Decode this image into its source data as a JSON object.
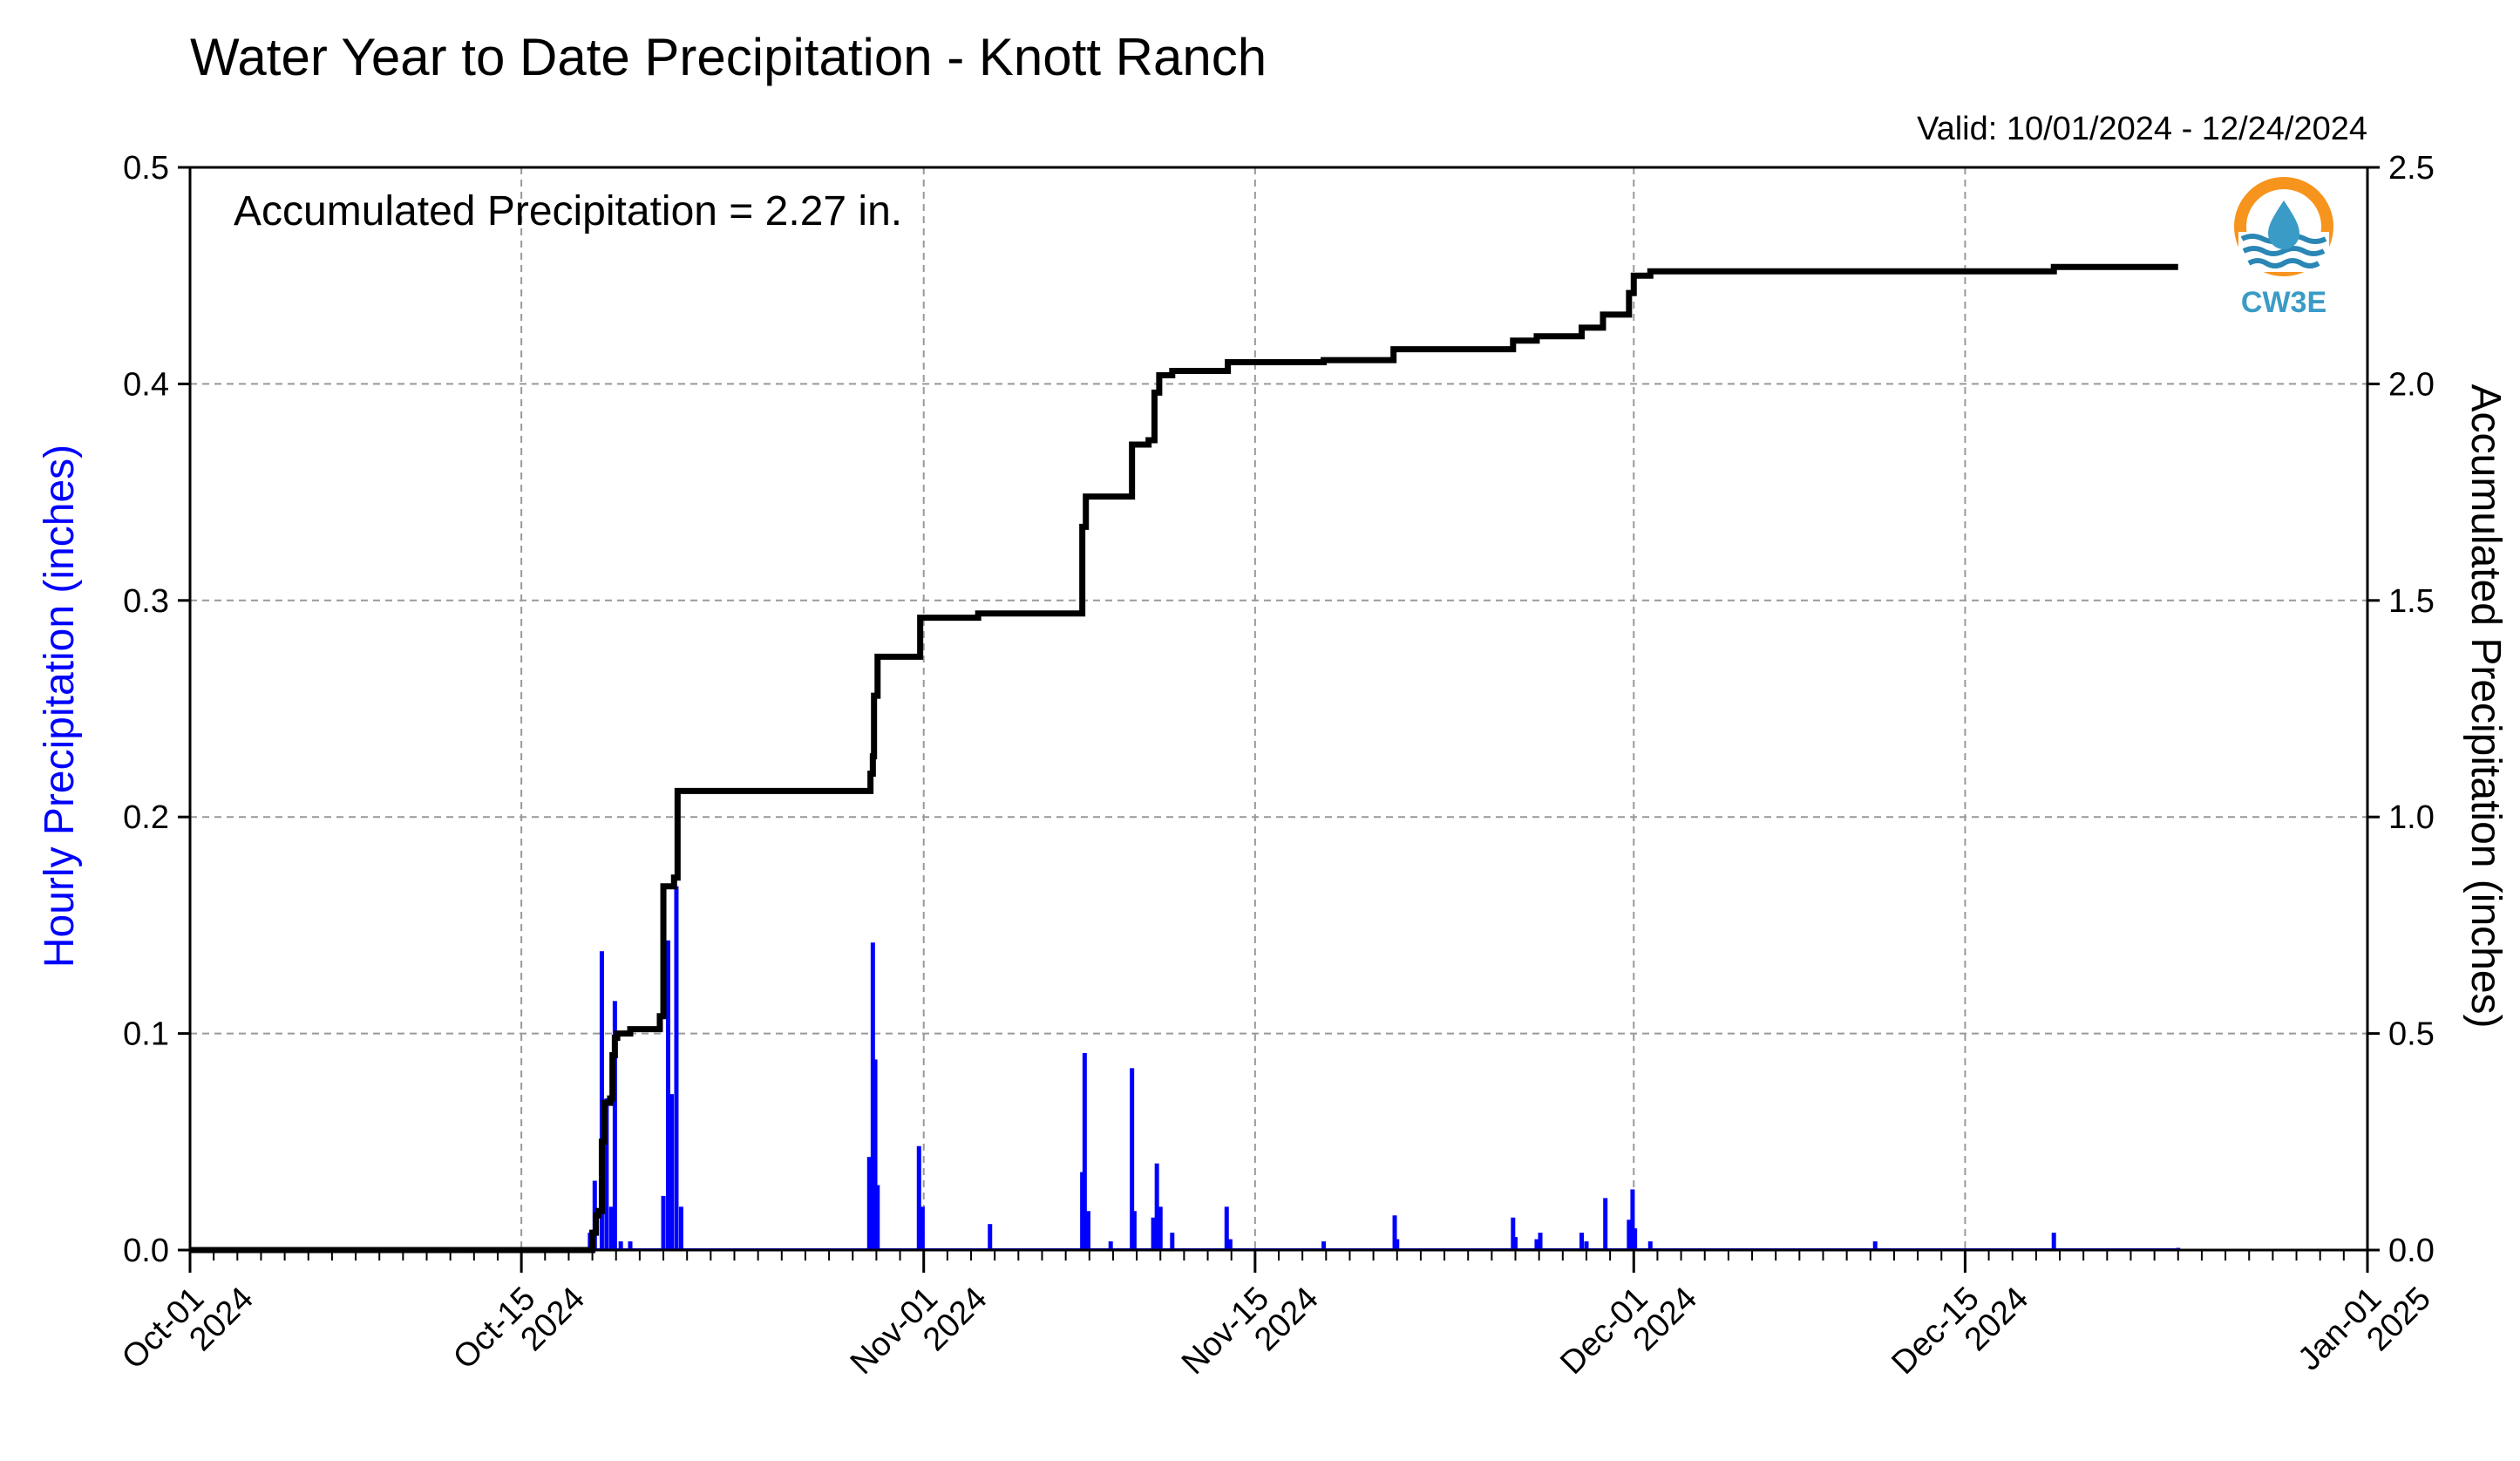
{
  "chart_data": {
    "type": "bar+line",
    "title": "Water Year to Date Precipitation - Knott Ranch",
    "valid_label": "Valid: 10/01/2024 - 12/24/2024",
    "annotation": "Accumulated Precipitation = 2.27 in.",
    "left_ylabel": "Hourly Precipitation (inches)",
    "right_ylabel": "Accumulated Precipitation (inches)",
    "left_ylim": [
      0,
      0.5
    ],
    "right_ylim": [
      0,
      2.5
    ],
    "left_ticks": [
      "0.0",
      "0.1",
      "0.2",
      "0.3",
      "0.4",
      "0.5"
    ],
    "right_ticks": [
      "0.0",
      "0.5",
      "1.0",
      "1.5",
      "2.0",
      "2.5"
    ],
    "xlim_days": [
      0,
      92
    ],
    "x_ticks": [
      {
        "day": 0,
        "line1": "Oct-01",
        "line2": "2024"
      },
      {
        "day": 14,
        "line1": "Oct-15",
        "line2": "2024"
      },
      {
        "day": 31,
        "line1": "Nov-01",
        "line2": "2024"
      },
      {
        "day": 45,
        "line1": "Nov-15",
        "line2": "2024"
      },
      {
        "day": 61,
        "line1": "Dec-01",
        "line2": "2024"
      },
      {
        "day": 75,
        "line1": "Dec-15",
        "line2": "2024"
      },
      {
        "day": 92,
        "line1": "Jan-01",
        "line2": "2025"
      }
    ],
    "grid": true,
    "bar_color": "#0000ff",
    "line_color": "#000000",
    "left_label_color": "#0000ff",
    "series": [
      {
        "kind": "bar",
        "axis": "left",
        "points": [
          [
            16.9,
            0.008
          ],
          [
            17.1,
            0.032
          ],
          [
            17.4,
            0.138
          ],
          [
            17.6,
            0.07
          ],
          [
            17.8,
            0.02
          ],
          [
            17.95,
            0.115
          ],
          [
            18.2,
            0.004
          ],
          [
            18.6,
            0.004
          ],
          [
            20.0,
            0.025
          ],
          [
            20.2,
            0.143
          ],
          [
            20.35,
            0.072
          ],
          [
            20.55,
            0.168
          ],
          [
            20.75,
            0.02
          ],
          [
            28.7,
            0.043
          ],
          [
            28.85,
            0.142
          ],
          [
            28.95,
            0.088
          ],
          [
            29.05,
            0.03
          ],
          [
            30.8,
            0.048
          ],
          [
            30.95,
            0.02
          ],
          [
            33.8,
            0.012
          ],
          [
            37.7,
            0.036
          ],
          [
            37.8,
            0.091
          ],
          [
            37.95,
            0.018
          ],
          [
            38.9,
            0.004
          ],
          [
            39.8,
            0.084
          ],
          [
            39.9,
            0.018
          ],
          [
            40.7,
            0.015
          ],
          [
            40.85,
            0.04
          ],
          [
            41.0,
            0.02
          ],
          [
            41.5,
            0.008
          ],
          [
            43.8,
            0.02
          ],
          [
            43.95,
            0.005
          ],
          [
            47.9,
            0.004
          ],
          [
            50.9,
            0.016
          ],
          [
            51.0,
            0.005
          ],
          [
            55.9,
            0.015
          ],
          [
            56.0,
            0.006
          ],
          [
            56.9,
            0.005
          ],
          [
            57.05,
            0.008
          ],
          [
            58.8,
            0.008
          ],
          [
            59.0,
            0.004
          ],
          [
            59.8,
            0.024
          ],
          [
            60.8,
            0.014
          ],
          [
            60.95,
            0.028
          ],
          [
            61.05,
            0.01
          ],
          [
            61.7,
            0.004
          ],
          [
            71.2,
            0.004
          ],
          [
            78.75,
            0.008
          ],
          [
            84.0,
            0.001
          ]
        ]
      },
      {
        "kind": "step_line",
        "axis": "right",
        "points": [
          [
            0,
            0.0
          ],
          [
            16.9,
            0.0
          ],
          [
            17.0,
            0.04
          ],
          [
            17.15,
            0.08
          ],
          [
            17.25,
            0.09
          ],
          [
            17.4,
            0.25
          ],
          [
            17.5,
            0.34
          ],
          [
            17.75,
            0.35
          ],
          [
            17.85,
            0.45
          ],
          [
            17.95,
            0.49
          ],
          [
            18.05,
            0.5
          ],
          [
            18.6,
            0.51
          ],
          [
            19.5,
            0.51
          ],
          [
            19.85,
            0.54
          ],
          [
            20.0,
            0.84
          ],
          [
            20.3,
            0.84
          ],
          [
            20.45,
            0.86
          ],
          [
            20.6,
            1.06
          ],
          [
            28.6,
            1.06
          ],
          [
            28.75,
            1.1
          ],
          [
            28.85,
            1.14
          ],
          [
            28.9,
            1.28
          ],
          [
            29.05,
            1.37
          ],
          [
            30.7,
            1.37
          ],
          [
            30.85,
            1.46
          ],
          [
            33.0,
            1.46
          ],
          [
            33.3,
            1.47
          ],
          [
            37.5,
            1.47
          ],
          [
            37.7,
            1.67
          ],
          [
            37.85,
            1.74
          ],
          [
            38.8,
            1.74
          ],
          [
            39.6,
            1.74
          ],
          [
            39.8,
            1.86
          ],
          [
            40.5,
            1.87
          ],
          [
            40.75,
            1.98
          ],
          [
            40.95,
            2.02
          ],
          [
            41.5,
            2.03
          ],
          [
            43.7,
            2.03
          ],
          [
            43.85,
            2.05
          ],
          [
            47.9,
            2.055
          ],
          [
            50.85,
            2.08
          ],
          [
            55.8,
            2.08
          ],
          [
            55.9,
            2.1
          ],
          [
            56.9,
            2.11
          ],
          [
            57.1,
            2.11
          ],
          [
            58.8,
            2.13
          ],
          [
            59.7,
            2.16
          ],
          [
            60.8,
            2.21
          ],
          [
            61.0,
            2.25
          ],
          [
            61.7,
            2.26
          ],
          [
            71.0,
            2.26
          ],
          [
            71.2,
            2.26
          ],
          [
            78.6,
            2.26
          ],
          [
            78.75,
            2.27
          ],
          [
            84.0,
            2.27
          ]
        ]
      }
    ]
  },
  "logo": {
    "text": "CW3E",
    "ring_color": "#f7941d",
    "drop_color": "#3a9bc6",
    "wave_color": "#2a86b5"
  }
}
